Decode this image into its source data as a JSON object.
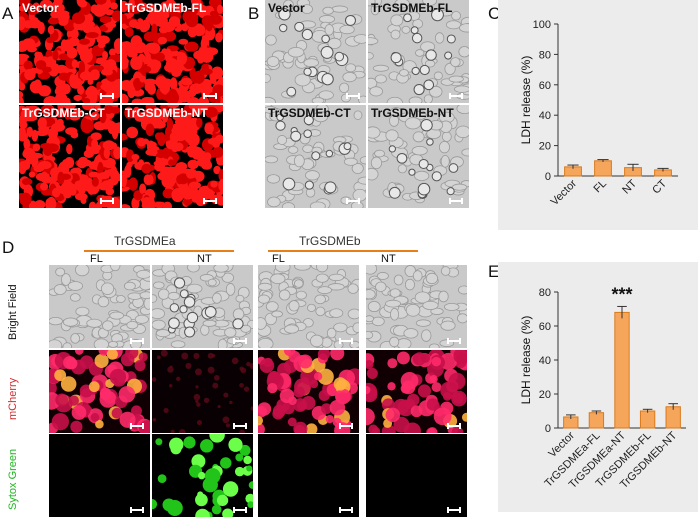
{
  "panels": {
    "A": "A",
    "B": "B",
    "C": "C",
    "D": "D",
    "E": "E"
  },
  "panel_a": {
    "labels": [
      "Vector",
      "TrGSDMEb-FL",
      "TrGSDMEb-CT",
      "TrGSDMEb-NT"
    ]
  },
  "panel_b": {
    "labels": [
      "Vector",
      "TrGSDMEb-FL",
      "TrGSDMEb-CT",
      "TrGSDMEb-NT"
    ]
  },
  "panel_d": {
    "groups": [
      "TrGSDMEa",
      "TrGSDMEb"
    ],
    "columns": [
      "FL",
      "NT",
      "FL",
      "NT"
    ],
    "rows": [
      "Bright Field",
      "mCherry",
      "Sytox Green"
    ],
    "row_colors": [
      "#111111",
      "#d23030",
      "#1fb81f"
    ]
  },
  "colors": {
    "bar": "#f5a65b",
    "bar_edge": "#d97a1c",
    "rule": "#e8801a",
    "chart_bg": "#ececec"
  },
  "chart_data": [
    {
      "type": "bar",
      "categories": [
        "Vector",
        "FL",
        "NT",
        "CT"
      ],
      "values": [
        6,
        10,
        5.5,
        4
      ],
      "errors": [
        1.2,
        0.8,
        2.2,
        1.0
      ],
      "ylabel": "LDH release (%)",
      "ylim": [
        0,
        100
      ],
      "yticks": [
        0,
        20,
        40,
        60,
        80,
        100
      ],
      "annotations": []
    },
    {
      "type": "bar",
      "categories": [
        "Vector",
        "TrGSDMEa-FL",
        "TrGSDMEa-NT",
        "TrGSDMEb-FL",
        "TrGSDMEb-NT"
      ],
      "values": [
        6.5,
        9,
        68,
        10,
        12.5
      ],
      "errors": [
        1.2,
        1.0,
        3.5,
        1.0,
        1.8
      ],
      "ylabel": "LDH release (%)",
      "ylim": [
        0,
        80
      ],
      "yticks": [
        0,
        20,
        40,
        60,
        80
      ],
      "annotations": [
        {
          "category": "TrGSDMEa-NT",
          "text": "***"
        }
      ]
    }
  ]
}
